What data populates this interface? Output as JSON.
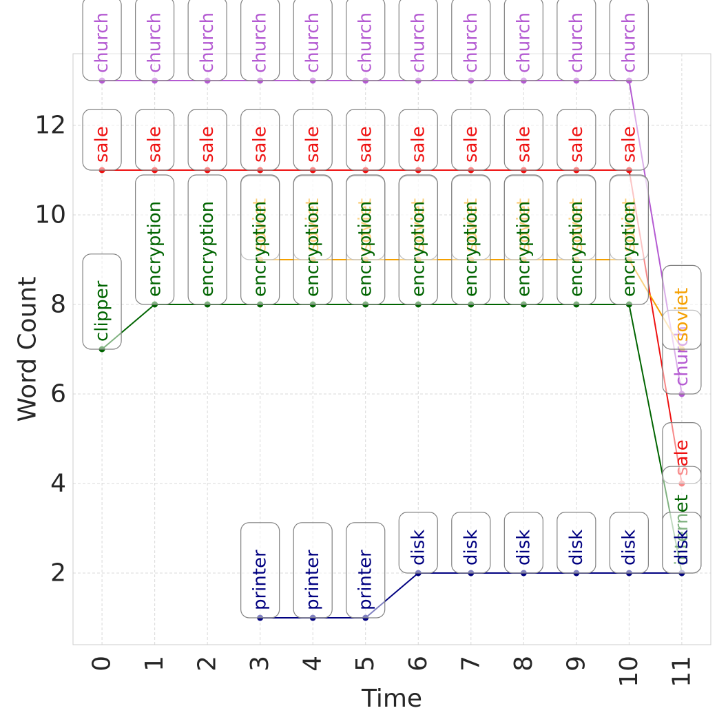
{
  "chart_data": {
    "type": "line",
    "title": "",
    "xlabel": "Time",
    "ylabel": "Word Count",
    "xlim": [
      -0.55,
      11.55
    ],
    "ylim": [
      0.4,
      13.6
    ],
    "x_ticks": [
      "0",
      "1",
      "2",
      "3",
      "4",
      "5",
      "6",
      "7",
      "8",
      "9",
      "10",
      "11"
    ],
    "y_ticks": [
      "2",
      "4",
      "6",
      "8",
      "10",
      "12"
    ],
    "grid": true,
    "series": [
      {
        "name": "church",
        "color": "#b45ad2",
        "x": [
          0,
          1,
          2,
          3,
          4,
          5,
          6,
          7,
          8,
          9,
          10,
          11
        ],
        "values": [
          13,
          13,
          13,
          13,
          13,
          13,
          13,
          13,
          13,
          13,
          13,
          6
        ],
        "labels": [
          "church",
          "church",
          "church",
          "church",
          "church",
          "church",
          "church",
          "church",
          "church",
          "church",
          "church",
          "church"
        ]
      },
      {
        "name": "sale",
        "color": "#ee1111",
        "x": [
          0,
          1,
          2,
          3,
          4,
          5,
          6,
          7,
          8,
          9,
          10,
          11
        ],
        "values": [
          11,
          11,
          11,
          11,
          11,
          11,
          11,
          11,
          11,
          11,
          11,
          4
        ],
        "labels": [
          "sale",
          "sale",
          "sale",
          "sale",
          "sale",
          "sale",
          "sale",
          "sale",
          "sale",
          "sale",
          "sale",
          "sale"
        ]
      },
      {
        "name": "soviet",
        "color": "#f5a000",
        "x": [
          3,
          4,
          5,
          6,
          7,
          8,
          9,
          10,
          11
        ],
        "values": [
          9,
          9,
          9,
          9,
          9,
          9,
          9,
          9,
          7
        ],
        "labels": [
          "soviet",
          "soviet",
          "soviet",
          "soviet",
          "soviet",
          "soviet",
          "soviet",
          "soviet",
          "soviet"
        ]
      },
      {
        "name": "clipper / encryption / internet",
        "color": "#006400",
        "x": [
          0,
          1,
          2,
          3,
          4,
          5,
          6,
          7,
          8,
          9,
          10,
          11
        ],
        "values": [
          7,
          8,
          8,
          8,
          8,
          8,
          8,
          8,
          8,
          8,
          8,
          2
        ],
        "labels": [
          "clipper",
          "encryption",
          "encryption",
          "encryption",
          "encryption",
          "encryption",
          "encryption",
          "encryption",
          "encryption",
          "encryption",
          "encryption",
          "internet"
        ]
      },
      {
        "name": "printer / disk",
        "color": "#000080",
        "x": [
          3,
          4,
          5,
          6,
          7,
          8,
          9,
          10,
          11
        ],
        "values": [
          1,
          1,
          1,
          2,
          2,
          2,
          2,
          2,
          2
        ],
        "labels": [
          "printer",
          "printer",
          "printer",
          "disk",
          "disk",
          "disk",
          "disk",
          "disk",
          "disk"
        ]
      }
    ]
  }
}
